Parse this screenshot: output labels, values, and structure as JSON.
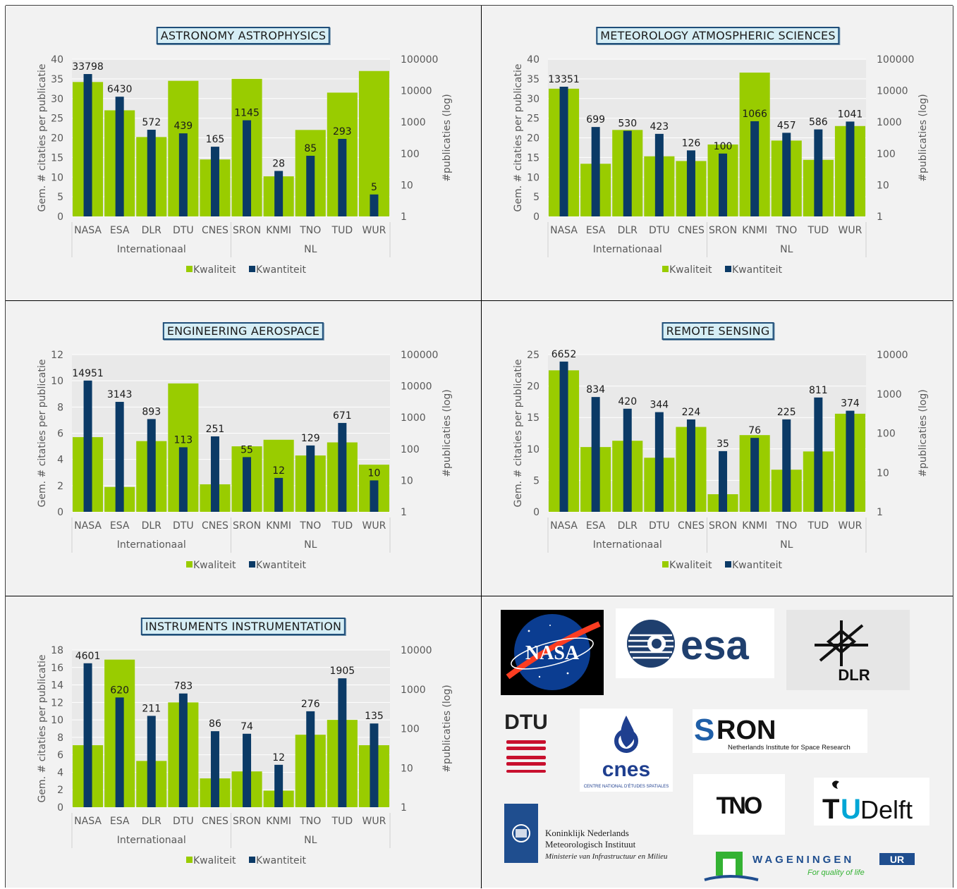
{
  "legend": {
    "kwaliteit": "Kwaliteit",
    "kwantiteit": "Kwantiteit"
  },
  "groups": {
    "international": "Internationaal",
    "nl": "NL"
  },
  "colors": {
    "kwaliteit": "#99cc00",
    "kwantiteit": "#0b3a66"
  },
  "chart_data": [
    {
      "type": "bar",
      "title": "ASTRONOMY ASTROPHYSICS",
      "categories": [
        "NASA",
        "ESA",
        "DLR",
        "DTU",
        "CNES",
        "SRON",
        "KNMI",
        "TNO",
        "TUD",
        "WUR"
      ],
      "ylabel": "Gem. # citaties per publicatie",
      "y2label": "#publicaties (log)",
      "ylim": [
        0,
        40
      ],
      "yticks": [
        "0",
        "5",
        "10",
        "15",
        "20",
        "25",
        "30",
        "35",
        "40"
      ],
      "y2ticks": [
        "1",
        "10",
        "100",
        "1000",
        "10000",
        "100000"
      ],
      "y2log_max": 100000,
      "series": [
        {
          "name": "Kwaliteit",
          "axis": "left",
          "values": [
            34.2,
            27,
            20.2,
            34.5,
            14.5,
            35,
            10.2,
            22,
            31.5,
            37
          ]
        },
        {
          "name": "Kwantiteit",
          "axis": "right-log",
          "values": [
            33798,
            6430,
            572,
            439,
            165,
            1145,
            28,
            85,
            293,
            5
          ]
        }
      ],
      "data_labels": [
        "33798",
        "6430",
        "572",
        "439",
        "165",
        "1145",
        "28",
        "85",
        "293",
        "5"
      ]
    },
    {
      "type": "bar",
      "title": "METEOROLOGY ATMOSPHERIC SCIENCES",
      "categories": [
        "NASA",
        "ESA",
        "DLR",
        "DTU",
        "CNES",
        "SRON",
        "KNMI",
        "TNO",
        "TUD",
        "WUR"
      ],
      "ylabel": "Gem. # citaties per publicatie",
      "y2label": "#publicaties (log)",
      "ylim": [
        0,
        40
      ],
      "yticks": [
        "0",
        "5",
        "10",
        "15",
        "20",
        "25",
        "30",
        "35",
        "40"
      ],
      "y2ticks": [
        "1",
        "10",
        "100",
        "1000",
        "10000",
        "100000"
      ],
      "y2log_max": 100000,
      "series": [
        {
          "name": "Kwaliteit",
          "axis": "left",
          "values": [
            32.5,
            13.4,
            22,
            15.3,
            14.1,
            18.3,
            36.6,
            19.3,
            14.4,
            23
          ]
        },
        {
          "name": "Kwantiteit",
          "axis": "right-log",
          "values": [
            13351,
            699,
            530,
            423,
            126,
            100,
            1066,
            457,
            586,
            1041
          ]
        }
      ],
      "data_labels": [
        "13351",
        "699",
        "530",
        "423",
        "126",
        "100",
        "1066",
        "457",
        "586",
        "1041"
      ]
    },
    {
      "type": "bar",
      "title": "ENGINEERING AEROSPACE",
      "categories": [
        "NASA",
        "ESA",
        "DLR",
        "DTU",
        "CNES",
        "SRON",
        "KNMI",
        "TNO",
        "TUD",
        "WUR"
      ],
      "ylabel": "Gem. # citaties per publicatie",
      "y2label": "#publicaties (log)",
      "ylim": [
        0,
        12
      ],
      "yticks": [
        "0",
        "2",
        "4",
        "6",
        "8",
        "10",
        "12"
      ],
      "y2ticks": [
        "1",
        "10",
        "100",
        "1000",
        "10000",
        "100000"
      ],
      "y2log_max": 100000,
      "series": [
        {
          "name": "Kwaliteit",
          "axis": "left",
          "values": [
            5.7,
            1.9,
            5.4,
            9.8,
            2.1,
            5.0,
            5.5,
            4.3,
            5.3,
            3.6
          ]
        },
        {
          "name": "Kwantiteit",
          "axis": "right-log",
          "values": [
            14951,
            3143,
            893,
            113,
            251,
            55,
            12,
            129,
            671,
            10
          ]
        }
      ],
      "data_labels": [
        "14951",
        "3143",
        "893",
        "113",
        "251",
        "55",
        "12",
        "129",
        "671",
        "10"
      ]
    },
    {
      "type": "bar",
      "title": "REMOTE SENSING",
      "categories": [
        "NASA",
        "ESA",
        "DLR",
        "DTU",
        "CNES",
        "SRON",
        "KNMI",
        "TNO",
        "TUD",
        "WUR"
      ],
      "ylabel": "Gem. # citaties per publicatie",
      "y2label": "#publicaties (log)",
      "ylim": [
        0,
        25
      ],
      "yticks": [
        "0",
        "5",
        "10",
        "15",
        "20",
        "25"
      ],
      "y2ticks": [
        "1",
        "10",
        "100",
        "1000",
        "10000"
      ],
      "y2log_max": 10000,
      "series": [
        {
          "name": "Kwaliteit",
          "axis": "left",
          "values": [
            22.5,
            10.3,
            11.3,
            8.6,
            13.5,
            2.8,
            12.2,
            6.7,
            9.6,
            15.6
          ]
        },
        {
          "name": "Kwantiteit",
          "axis": "right-log",
          "values": [
            6652,
            834,
            420,
            344,
            224,
            35,
            76,
            225,
            811,
            374
          ]
        }
      ],
      "data_labels": [
        "6652",
        "834",
        "420",
        "344",
        "224",
        "35",
        "76",
        "225",
        "811",
        "374"
      ]
    },
    {
      "type": "bar",
      "title": "INSTRUMENTS INSTRUMENTATION",
      "categories": [
        "NASA",
        "ESA",
        "DLR",
        "DTU",
        "CNES",
        "SRON",
        "KNMI",
        "TNO",
        "TUD",
        "WUR"
      ],
      "ylabel": "Gem. # citaties per publicatie",
      "y2label": "#publicaties (log)",
      "ylim": [
        0,
        18
      ],
      "yticks": [
        "0",
        "2",
        "4",
        "6",
        "8",
        "10",
        "12",
        "14",
        "16",
        "18"
      ],
      "y2ticks": [
        "1",
        "10",
        "100",
        "1000",
        "10000"
      ],
      "y2log_max": 10000,
      "series": [
        {
          "name": "Kwaliteit",
          "axis": "left",
          "values": [
            7.1,
            16.9,
            5.3,
            12,
            3.3,
            4.1,
            1.9,
            8.3,
            10,
            7.1
          ]
        },
        {
          "name": "Kwantiteit",
          "axis": "right-log",
          "values": [
            4601,
            620,
            211,
            783,
            86,
            74,
            12,
            276,
            1905,
            135
          ]
        }
      ],
      "data_labels": [
        "4601",
        "620",
        "211",
        "783",
        "86",
        "74",
        "12",
        "276",
        "1905",
        "135"
      ]
    }
  ],
  "logos": {
    "nasa": "NASA",
    "esa": "esa",
    "dlr": "DLR",
    "dtu": "DTU",
    "cnes": "cnes",
    "cnes_sub": "CENTRE NATIONAL D'ÉTUDES SPATIALES",
    "sron": "RON",
    "sron_s": "S",
    "sron_sub": "Netherlands Institute for Space Research",
    "tno": "TNO",
    "tudelft_t": "T",
    "tudelft_u": "U",
    "tudelft_rest": "Delft",
    "knmi_line1": "Koninklijk Nederlands",
    "knmi_line2": "Meteorologisch Instituut",
    "knmi_line3": "Ministerie van Infrastructuur en Milieu",
    "wur": "WAGENINGEN",
    "wur_ur": "UR",
    "wur_tag": "For quality of life"
  }
}
